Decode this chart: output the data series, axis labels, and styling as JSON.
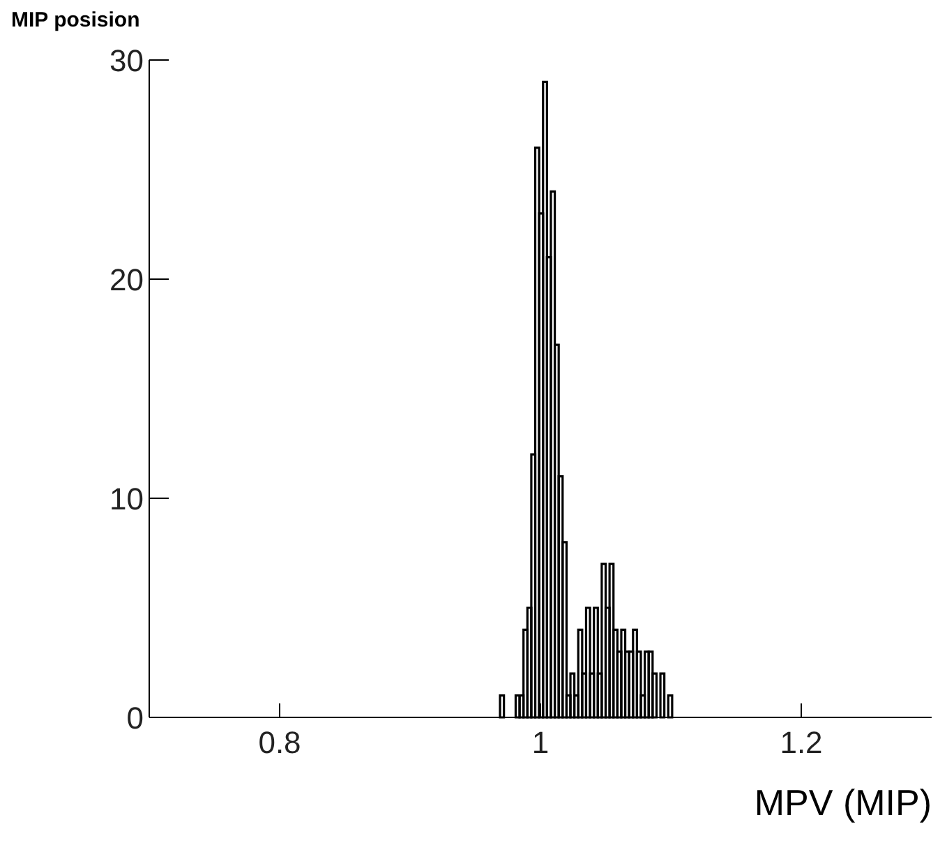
{
  "chart_data": {
    "type": "histogram",
    "title": "MIP posision",
    "xlabel": "MPV (MIP)",
    "bins": [
      0.96,
      0.963,
      0.966,
      0.969,
      0.972,
      0.975,
      0.978,
      0.981,
      0.984,
      0.987,
      0.99,
      0.993,
      0.996,
      0.999,
      1.002,
      1.005,
      1.008,
      1.011,
      1.014,
      1.017,
      1.02,
      1.023,
      1.026,
      1.029,
      1.032,
      1.035,
      1.038,
      1.041,
      1.044,
      1.047,
      1.05,
      1.053,
      1.056,
      1.059,
      1.062,
      1.065,
      1.068,
      1.071,
      1.074,
      1.077,
      1.08,
      1.083,
      1.086,
      1.089,
      1.092,
      1.095,
      1.098,
      1.101,
      1.104,
      1.107,
      1.11
    ],
    "values": [
      0,
      0,
      0,
      1,
      0,
      0,
      0,
      1,
      1,
      4,
      5,
      12,
      26,
      23,
      29,
      21,
      24,
      17,
      11,
      8,
      1,
      2,
      1,
      4,
      2,
      5,
      2,
      5,
      2,
      7,
      5,
      7,
      4,
      3,
      4,
      3,
      3,
      4,
      3,
      1,
      3,
      3,
      2,
      0,
      2,
      0,
      1,
      0,
      0,
      0
    ],
    "color": "#000000",
    "xlim": [
      0.7,
      1.3
    ],
    "xticks": [
      0.8,
      1,
      1.2
    ],
    "ylim": [
      0,
      30
    ],
    "yticks": [
      0,
      10,
      20,
      30
    ]
  }
}
